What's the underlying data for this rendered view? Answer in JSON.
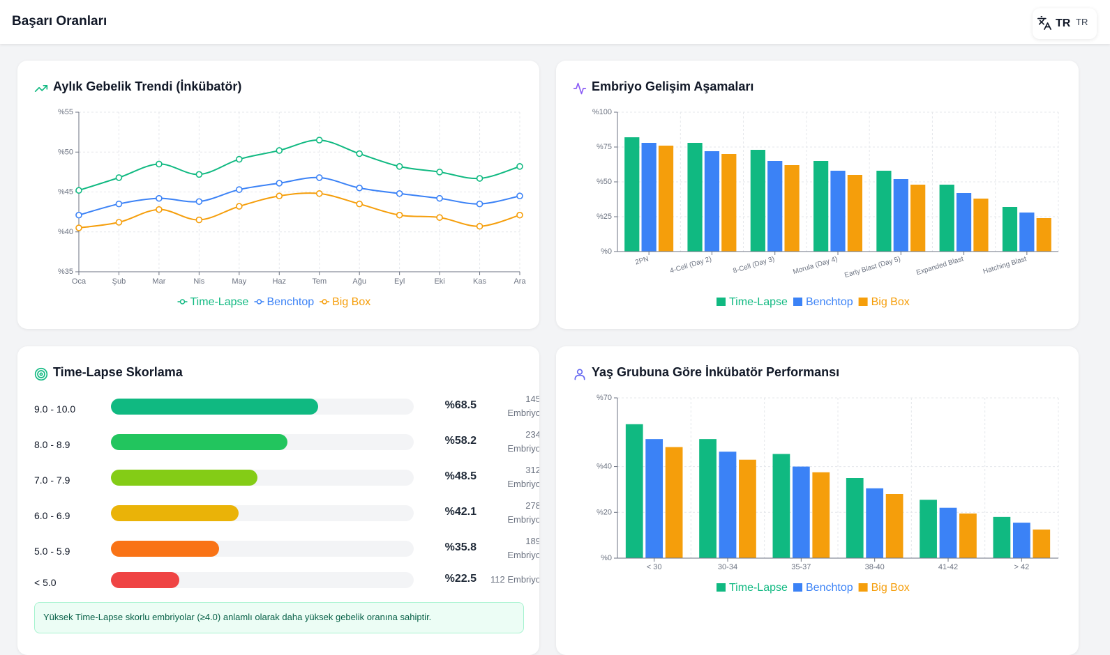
{
  "header": {
    "title": "Başarı Oranları",
    "lang_code": "TR",
    "lang_code_small": "TR"
  },
  "colors": {
    "time_lapse": "#10b981",
    "benchtop": "#3b82f6",
    "big_box": "#f59e0b"
  },
  "trend": {
    "title": "Aylık Gebelik Trendi (İnkübatör)",
    "icon": "trending-up-icon",
    "chart_data": {
      "type": "line",
      "categories": [
        "Oca",
        "Şub",
        "Mar",
        "Nis",
        "May",
        "Haz",
        "Tem",
        "Ağu",
        "Eyl",
        "Eki",
        "Kas",
        "Ara"
      ],
      "series": [
        {
          "name": "Time-Lapse",
          "values": [
            45.2,
            46.8,
            48.5,
            47.2,
            49.1,
            50.2,
            51.5,
            49.8,
            48.2,
            47.5,
            46.7,
            48.2
          ]
        },
        {
          "name": "Benchtop",
          "values": [
            42.1,
            43.5,
            44.2,
            43.8,
            45.3,
            46.1,
            46.8,
            45.5,
            44.8,
            44.2,
            43.5,
            44.5
          ]
        },
        {
          "name": "Big Box",
          "values": [
            40.5,
            41.2,
            42.8,
            41.5,
            43.2,
            44.5,
            44.8,
            43.5,
            42.1,
            41.8,
            40.7,
            42.1
          ]
        }
      ],
      "y_ticks": [
        "%35",
        "%40",
        "%45",
        "%50",
        "%55"
      ],
      "ylim": [
        35,
        55
      ],
      "grid": true,
      "legend": "bottom"
    }
  },
  "stages": {
    "title": "Embriyo Gelişim Aşamaları",
    "icon": "activity-icon",
    "chart_data": {
      "type": "bar",
      "categories": [
        "2PN",
        "4-Cell (Day 2)",
        "8-Cell (Day 3)",
        "Morula (Day 4)",
        "Early Blast (Day 5)",
        "Expanded Blast",
        "Hatching Blast"
      ],
      "series": [
        {
          "name": "Time-Lapse",
          "values": [
            82,
            78,
            73,
            65,
            58,
            48,
            32
          ]
        },
        {
          "name": "Benchtop",
          "values": [
            78,
            72,
            65,
            58,
            52,
            42,
            28
          ]
        },
        {
          "name": "Big Box",
          "values": [
            76,
            70,
            62,
            55,
            48,
            38,
            24
          ]
        }
      ],
      "y_ticks": [
        "%0",
        "%25",
        "%50",
        "%75",
        "%100"
      ],
      "ylim": [
        0,
        100
      ],
      "grid": true,
      "legend": "bottom"
    }
  },
  "scoring": {
    "title": "Time-Lapse Skorlama",
    "icon": "target-icon",
    "rows": [
      {
        "range": "9.0 - 10.0",
        "pct": "%68.5",
        "value": 68.5,
        "count_num": "145",
        "count_unit": "Embriyo",
        "color": "#10b981"
      },
      {
        "range": "8.0 - 8.9",
        "pct": "%58.2",
        "value": 58.2,
        "count_num": "234",
        "count_unit": "Embriyo",
        "color": "#22c55e"
      },
      {
        "range": "7.0 - 7.9",
        "pct": "%48.5",
        "value": 48.5,
        "count_num": "312",
        "count_unit": "Embriyo",
        "color": "#84cc16"
      },
      {
        "range": "6.0 - 6.9",
        "pct": "%42.1",
        "value": 42.1,
        "count_num": "278",
        "count_unit": "Embriyo",
        "color": "#eab308"
      },
      {
        "range": "5.0 - 5.9",
        "pct": "%35.8",
        "value": 35.8,
        "count_num": "189",
        "count_unit": "Embriyo",
        "color": "#f97316"
      },
      {
        "range": "< 5.0",
        "pct": "%22.5",
        "value": 22.5,
        "count_num": "112",
        "count_unit": "Embriyo",
        "color": "#ef4444"
      }
    ],
    "note": "Yüksek Time-Lapse skorlu embriyolar (≥4.0) anlamlı olarak daha yüksek gebelik oranına sahiptir."
  },
  "age": {
    "title": "Yaş Grubuna Göre İnkübatör Performansı",
    "icon": "user-icon",
    "chart_data": {
      "type": "bar",
      "categories": [
        "< 30",
        "30-34",
        "35-37",
        "38-40",
        "41-42",
        "> 42"
      ],
      "series": [
        {
          "name": "Time-Lapse",
          "values": [
            58.5,
            52,
            45.5,
            35,
            25.5,
            18
          ]
        },
        {
          "name": "Benchtop",
          "values": [
            52,
            46.5,
            40,
            30.5,
            22,
            15.5
          ]
        },
        {
          "name": "Big Box",
          "values": [
            48.5,
            43,
            37.5,
            28,
            19.5,
            12.5
          ]
        }
      ],
      "y_ticks": [
        "%0",
        "%20",
        "%40",
        "%70"
      ],
      "ylim": [
        0,
        70
      ],
      "grid": true,
      "legend": "bottom"
    }
  }
}
